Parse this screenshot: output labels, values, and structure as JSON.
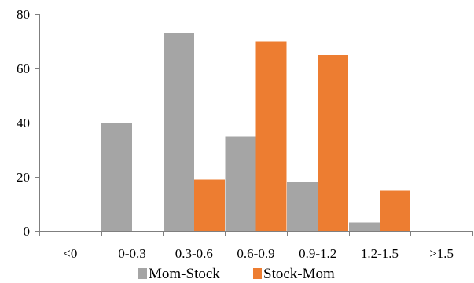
{
  "chart_data": {
    "type": "bar",
    "title": "",
    "xlabel": "",
    "ylabel": "",
    "categories": [
      "<0",
      "0-0.3",
      "0.3-0.6",
      "0.6-0.9",
      "0.9-1.2",
      "1.2-1.5",
      ">1.5"
    ],
    "series": [
      {
        "name": "Mom-Stock",
        "color": "#a5a5a5",
        "values": [
          0,
          40,
          73,
          35,
          18,
          3,
          0
        ]
      },
      {
        "name": "Stock-Mom",
        "color": "#ed7d31",
        "values": [
          0,
          0,
          19,
          70,
          65,
          15,
          0
        ]
      }
    ],
    "ylim": [
      0,
      80
    ],
    "yticks": [
      0,
      20,
      40,
      60,
      80
    ],
    "grid": false,
    "legend_position": "bottom"
  }
}
